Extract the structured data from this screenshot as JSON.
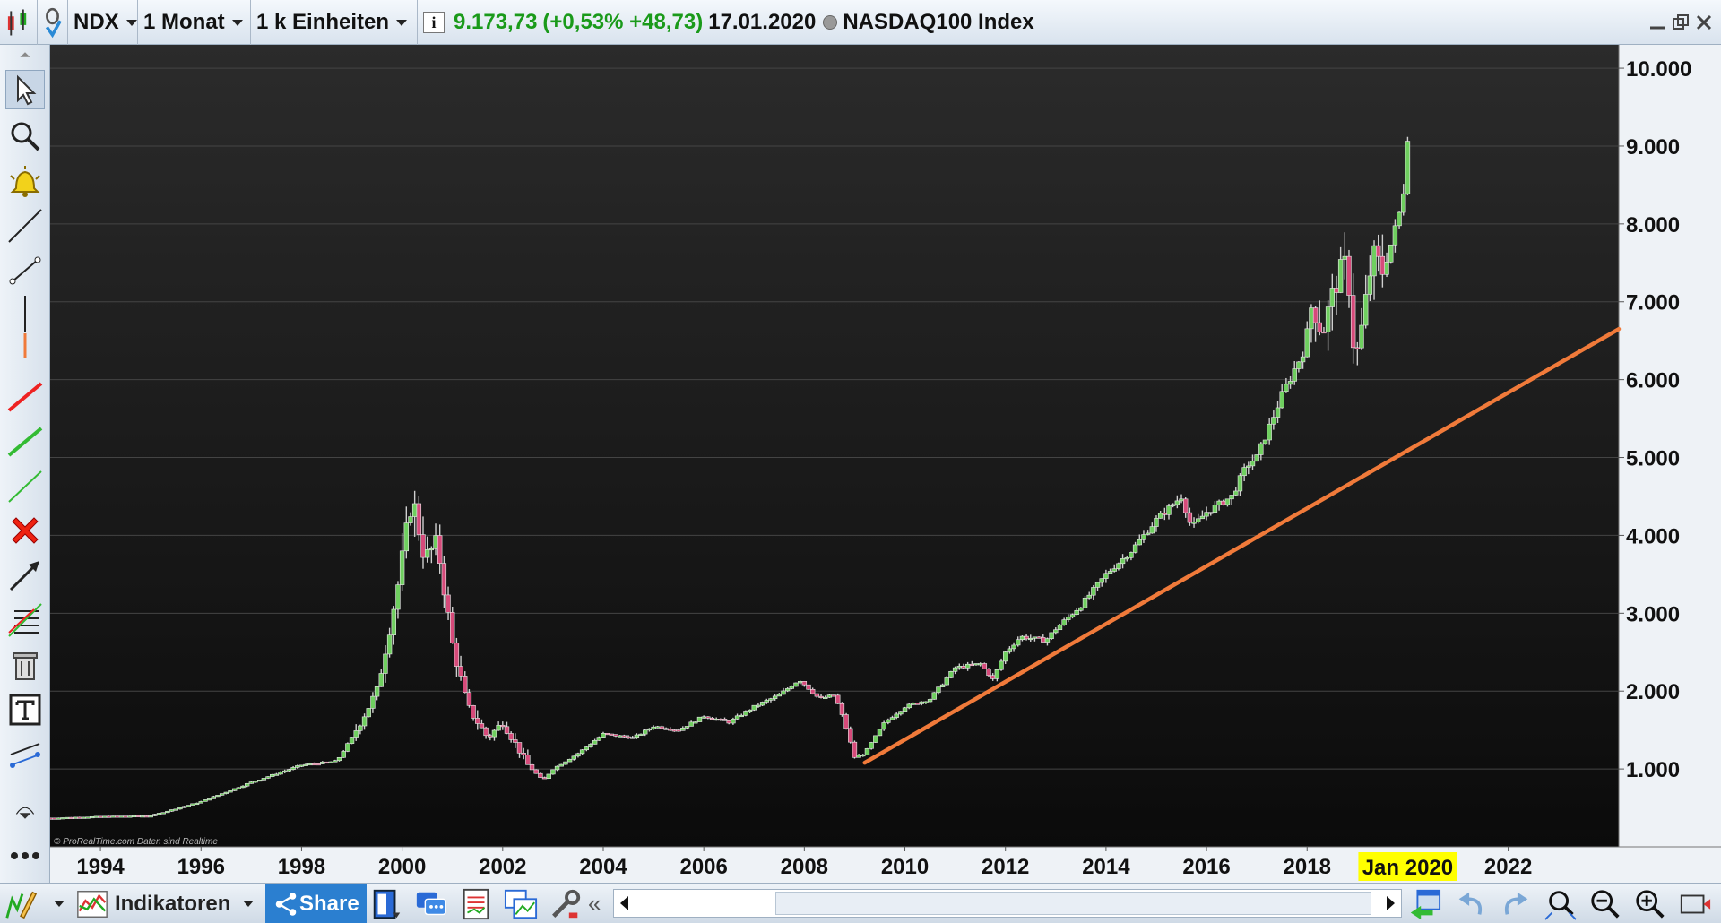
{
  "header": {
    "symbol": "NDX",
    "period": "1 Monat",
    "units": "1 k Einheiten",
    "info_icon": "info-icon",
    "price": "9.173,73",
    "change": "(+0,53% +48,73)",
    "date": "17.01.2020",
    "name": "NASDAQ100 Index"
  },
  "toolbar": {
    "tools": [
      "cursor-icon",
      "zoom-icon",
      "alarm-bell-icon",
      "line-icon",
      "segment-icon",
      "vertical-line-icon",
      "red-line-icon",
      "green-line-icon",
      "green-thin-line-icon",
      "delete-icon",
      "arrow-icon",
      "fibonacci-icon",
      "trash-icon",
      "text-icon",
      "channel-icon"
    ]
  },
  "footer": {
    "indicators_label": "Indikatoren",
    "share_label": "Share",
    "more_icon": "more-dots-icon"
  },
  "colors": {
    "up": "#6fcf5f",
    "down": "#d64a7a",
    "trend": "#f07a3a",
    "background_top": "#2a2a2a",
    "background_bottom": "#0c0c0c",
    "highlight": "#ffff00"
  },
  "chart_data": {
    "type": "candlestick",
    "xlim": [
      1993.0,
      2024.2
    ],
    "ylim": [
      0,
      10300
    ],
    "y_ticks": [
      1000,
      2000,
      3000,
      4000,
      5000,
      6000,
      7000,
      8000,
      9000,
      10000
    ],
    "y_tick_labels": [
      "1.000",
      "2.000",
      "3.000",
      "4.000",
      "5.000",
      "6.000",
      "7.000",
      "8.000",
      "9.000",
      "10.000"
    ],
    "x_ticks": [
      1994,
      1996,
      1998,
      2000,
      2002,
      2004,
      2006,
      2008,
      2010,
      2012,
      2014,
      2016,
      2018,
      2022
    ],
    "x_tick_labels": [
      "1994",
      "1996",
      "1998",
      "2000",
      "2002",
      "2004",
      "2006",
      "2008",
      "2010",
      "2012",
      "2014",
      "2016",
      "2018",
      "2022"
    ],
    "current_x_label": "Jan 2020",
    "current_x": 2020.0,
    "watermark": "© ProRealTime.com  Daten sind Realtime",
    "trendline": {
      "x1": 2009.2,
      "y1": 1080,
      "x2": 2024.2,
      "y2": 6650
    },
    "anchors": [
      [
        1993.0,
        370
      ],
      [
        1994.0,
        390
      ],
      [
        1995.0,
        400
      ],
      [
        1996.0,
        580
      ],
      [
        1997.0,
        830
      ],
      [
        1998.0,
        1050
      ],
      [
        1998.7,
        1100
      ],
      [
        1999.0,
        1400
      ],
      [
        1999.5,
        2000
      ],
      [
        1999.9,
        3300
      ],
      [
        2000.2,
        4500
      ],
      [
        2000.45,
        3700
      ],
      [
        2000.7,
        3900
      ],
      [
        2001.0,
        2600
      ],
      [
        2001.3,
        1800
      ],
      [
        2001.7,
        1400
      ],
      [
        2002.0,
        1600
      ],
      [
        2002.5,
        1050
      ],
      [
        2002.8,
        850
      ],
      [
        2003.0,
        1000
      ],
      [
        2003.5,
        1200
      ],
      [
        2004.0,
        1450
      ],
      [
        2004.6,
        1400
      ],
      [
        2005.0,
        1550
      ],
      [
        2005.5,
        1500
      ],
      [
        2006.0,
        1680
      ],
      [
        2006.5,
        1600
      ],
      [
        2007.0,
        1800
      ],
      [
        2007.5,
        1950
      ],
      [
        2007.9,
        2150
      ],
      [
        2008.3,
        1900
      ],
      [
        2008.6,
        1950
      ],
      [
        2008.8,
        1600
      ],
      [
        2009.0,
        1150
      ],
      [
        2009.2,
        1200
      ],
      [
        2009.6,
        1600
      ],
      [
        2010.0,
        1800
      ],
      [
        2010.5,
        1900
      ],
      [
        2011.0,
        2300
      ],
      [
        2011.5,
        2350
      ],
      [
        2011.75,
        2150
      ],
      [
        2012.0,
        2500
      ],
      [
        2012.3,
        2700
      ],
      [
        2012.8,
        2650
      ],
      [
        2013.0,
        2800
      ],
      [
        2013.5,
        3100
      ],
      [
        2014.0,
        3500
      ],
      [
        2014.5,
        3800
      ],
      [
        2015.0,
        4200
      ],
      [
        2015.5,
        4500
      ],
      [
        2015.7,
        4100
      ],
      [
        2016.0,
        4300
      ],
      [
        2016.5,
        4500
      ],
      [
        2016.8,
        4900
      ],
      [
        2017.0,
        5000
      ],
      [
        2017.5,
        5800
      ],
      [
        2017.95,
        6400
      ],
      [
        2018.1,
        7000
      ],
      [
        2018.3,
        6600
      ],
      [
        2018.6,
        7300
      ],
      [
        2018.8,
        7500
      ],
      [
        2018.95,
        6200
      ],
      [
        2019.1,
        6700
      ],
      [
        2019.3,
        7600
      ],
      [
        2019.5,
        7400
      ],
      [
        2019.7,
        7800
      ],
      [
        2019.9,
        8300
      ],
      [
        2020.0,
        9150
      ]
    ]
  }
}
